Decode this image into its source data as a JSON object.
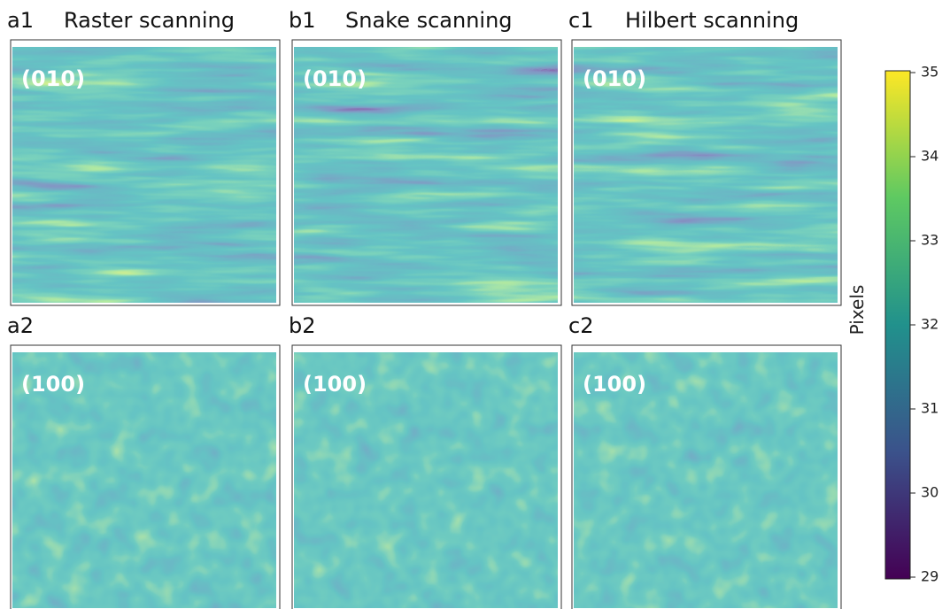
{
  "chart_data": {
    "type": "image-grid",
    "panels": [
      {
        "id": "a1",
        "title": "Raster scanning",
        "plane": "(010)"
      },
      {
        "id": "b1",
        "title": "Snake scanning",
        "plane": "(010)"
      },
      {
        "id": "c1",
        "title": "Hilbert scanning",
        "plane": "(010)"
      },
      {
        "id": "a2",
        "plane": "(100)"
      },
      {
        "id": "b2",
        "plane": "(100)"
      },
      {
        "id": "c2",
        "plane": "(100)"
      }
    ],
    "colorbar": {
      "label": "Pixels",
      "lim": [
        29,
        35
      ],
      "ticks": [
        29,
        30,
        31,
        32,
        33,
        34,
        35
      ],
      "colormap": "viridis"
    }
  }
}
